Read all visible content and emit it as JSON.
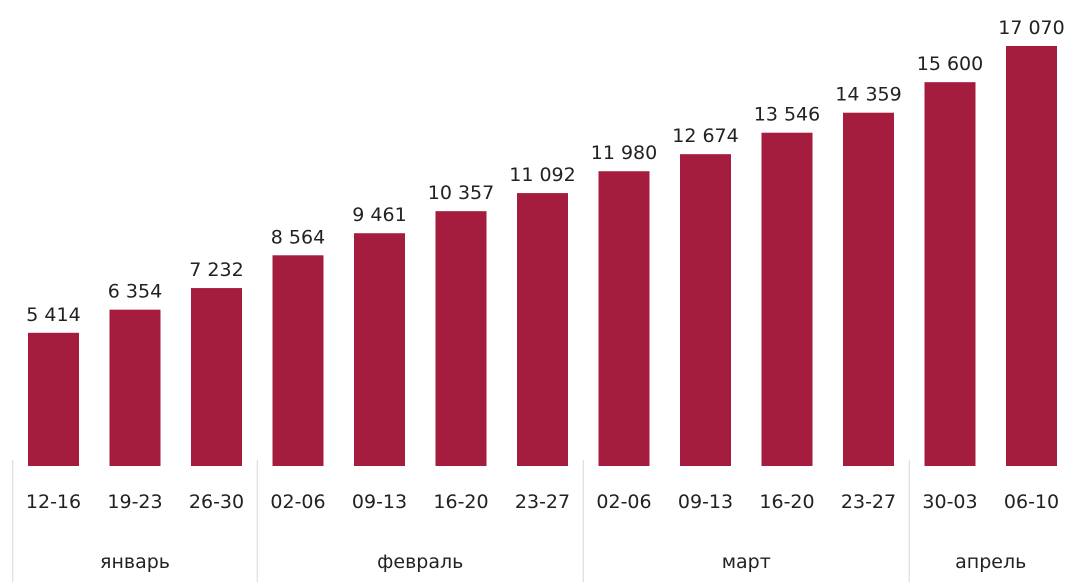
{
  "chart_data": {
    "type": "bar",
    "title": "",
    "xlabel": "",
    "ylabel": "",
    "ylim": [
      0,
      17070
    ],
    "grid": false,
    "legend": "none",
    "bar_color": "#A51D3E",
    "categories": [
      "12-16",
      "19-23",
      "26-30",
      "02-06",
      "09-13",
      "16-20",
      "23-27",
      "02-06",
      "09-13",
      "16-20",
      "23-27",
      "30-03",
      "06-10"
    ],
    "values": [
      5414,
      6354,
      7232,
      8564,
      9461,
      10357,
      11092,
      11980,
      12674,
      13546,
      14359,
      15600,
      17070
    ],
    "value_labels": [
      "5 414",
      "6 354",
      "7 232",
      "8 564",
      "9 461",
      "10 357",
      "11 092",
      "11 980",
      "12 674",
      "13 546",
      "14 359",
      "15 600",
      "17 070"
    ],
    "month_groups": [
      {
        "label": "январь",
        "count": 3
      },
      {
        "label": "февраль",
        "count": 4
      },
      {
        "label": "март",
        "count": 4
      },
      {
        "label": "апрель",
        "count": 2
      }
    ]
  }
}
